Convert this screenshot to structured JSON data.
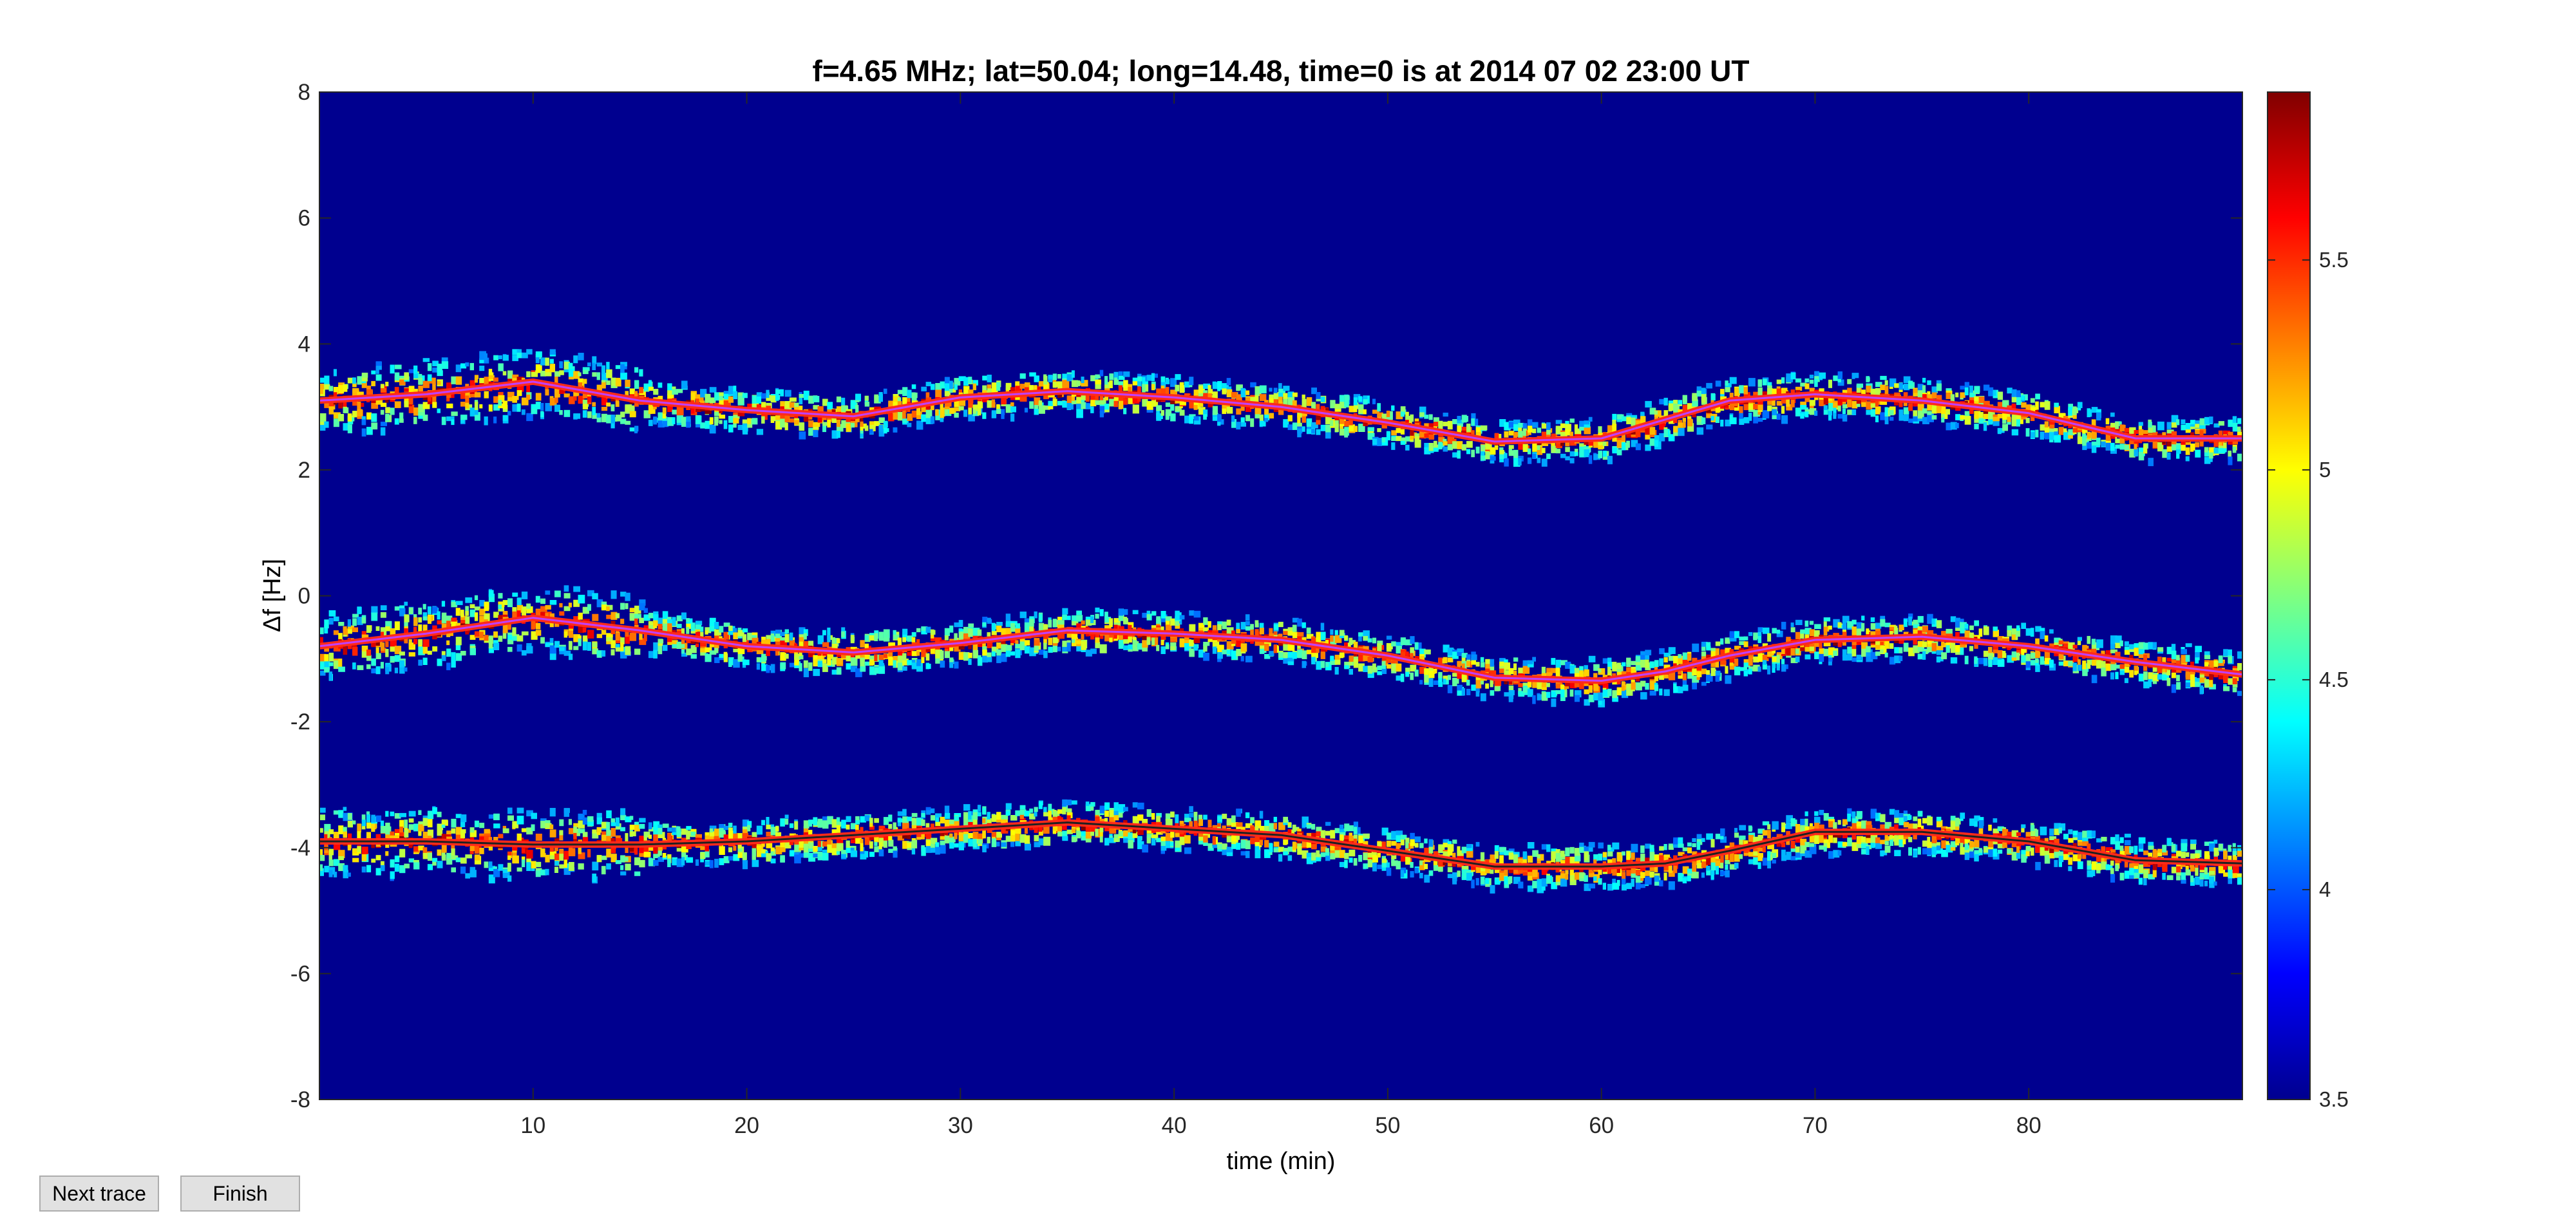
{
  "buttons": {
    "next_trace": "Next trace",
    "finish": "Finish"
  },
  "chart_data": {
    "type": "heatmap",
    "title": "f=4.65 MHz;  lat=50.04; long=14.48, time=0 is at 2014 07 02 23:00 UT",
    "xlabel": "time (min)",
    "ylabel": "Δf [Hz]",
    "xlim": [
      0,
      90
    ],
    "ylim": [
      -8,
      8
    ],
    "xticks": [
      10,
      20,
      30,
      40,
      50,
      60,
      70,
      80
    ],
    "yticks": [
      -8,
      -6,
      -4,
      -2,
      0,
      2,
      4,
      6,
      8
    ],
    "colormap": "jet",
    "colorbar": {
      "range": [
        3.5,
        5.9
      ],
      "ticks": [
        3.5,
        4,
        4.5,
        5,
        5.5
      ]
    },
    "background_color": "#00008f",
    "traces": [
      {
        "t": [
          0,
          5,
          10,
          15,
          20,
          25,
          30,
          35,
          40,
          45,
          50,
          55,
          60,
          63,
          66,
          70,
          75,
          80,
          85,
          90
        ],
        "df": [
          3.1,
          3.2,
          3.4,
          3.1,
          2.95,
          2.85,
          3.15,
          3.25,
          3.15,
          3.0,
          2.75,
          2.45,
          2.5,
          2.8,
          3.1,
          3.2,
          3.1,
          2.9,
          2.5,
          2.5
        ],
        "trace_color": "#c040ff"
      },
      {
        "t": [
          0,
          5,
          10,
          15,
          20,
          25,
          30,
          35,
          40,
          45,
          50,
          55,
          60,
          63,
          66,
          70,
          75,
          80,
          85,
          90
        ],
        "df": [
          -0.8,
          -0.6,
          -0.35,
          -0.55,
          -0.8,
          -0.9,
          -0.75,
          -0.55,
          -0.6,
          -0.7,
          -0.95,
          -1.3,
          -1.35,
          -1.2,
          -0.95,
          -0.7,
          -0.65,
          -0.8,
          -1.05,
          -1.25
        ],
        "trace_color": "#c040ff"
      },
      {
        "t": [
          0,
          5,
          10,
          15,
          20,
          25,
          30,
          35,
          40,
          45,
          50,
          55,
          60,
          63,
          66,
          70,
          75,
          80,
          85,
          90
        ],
        "df": [
          -3.9,
          -3.9,
          -3.95,
          -3.95,
          -3.9,
          -3.8,
          -3.7,
          -3.6,
          -3.7,
          -3.8,
          -4.05,
          -4.3,
          -4.3,
          -4.25,
          -4.05,
          -3.75,
          -3.75,
          -3.9,
          -4.2,
          -4.25
        ],
        "trace_color": "#202020"
      }
    ]
  }
}
